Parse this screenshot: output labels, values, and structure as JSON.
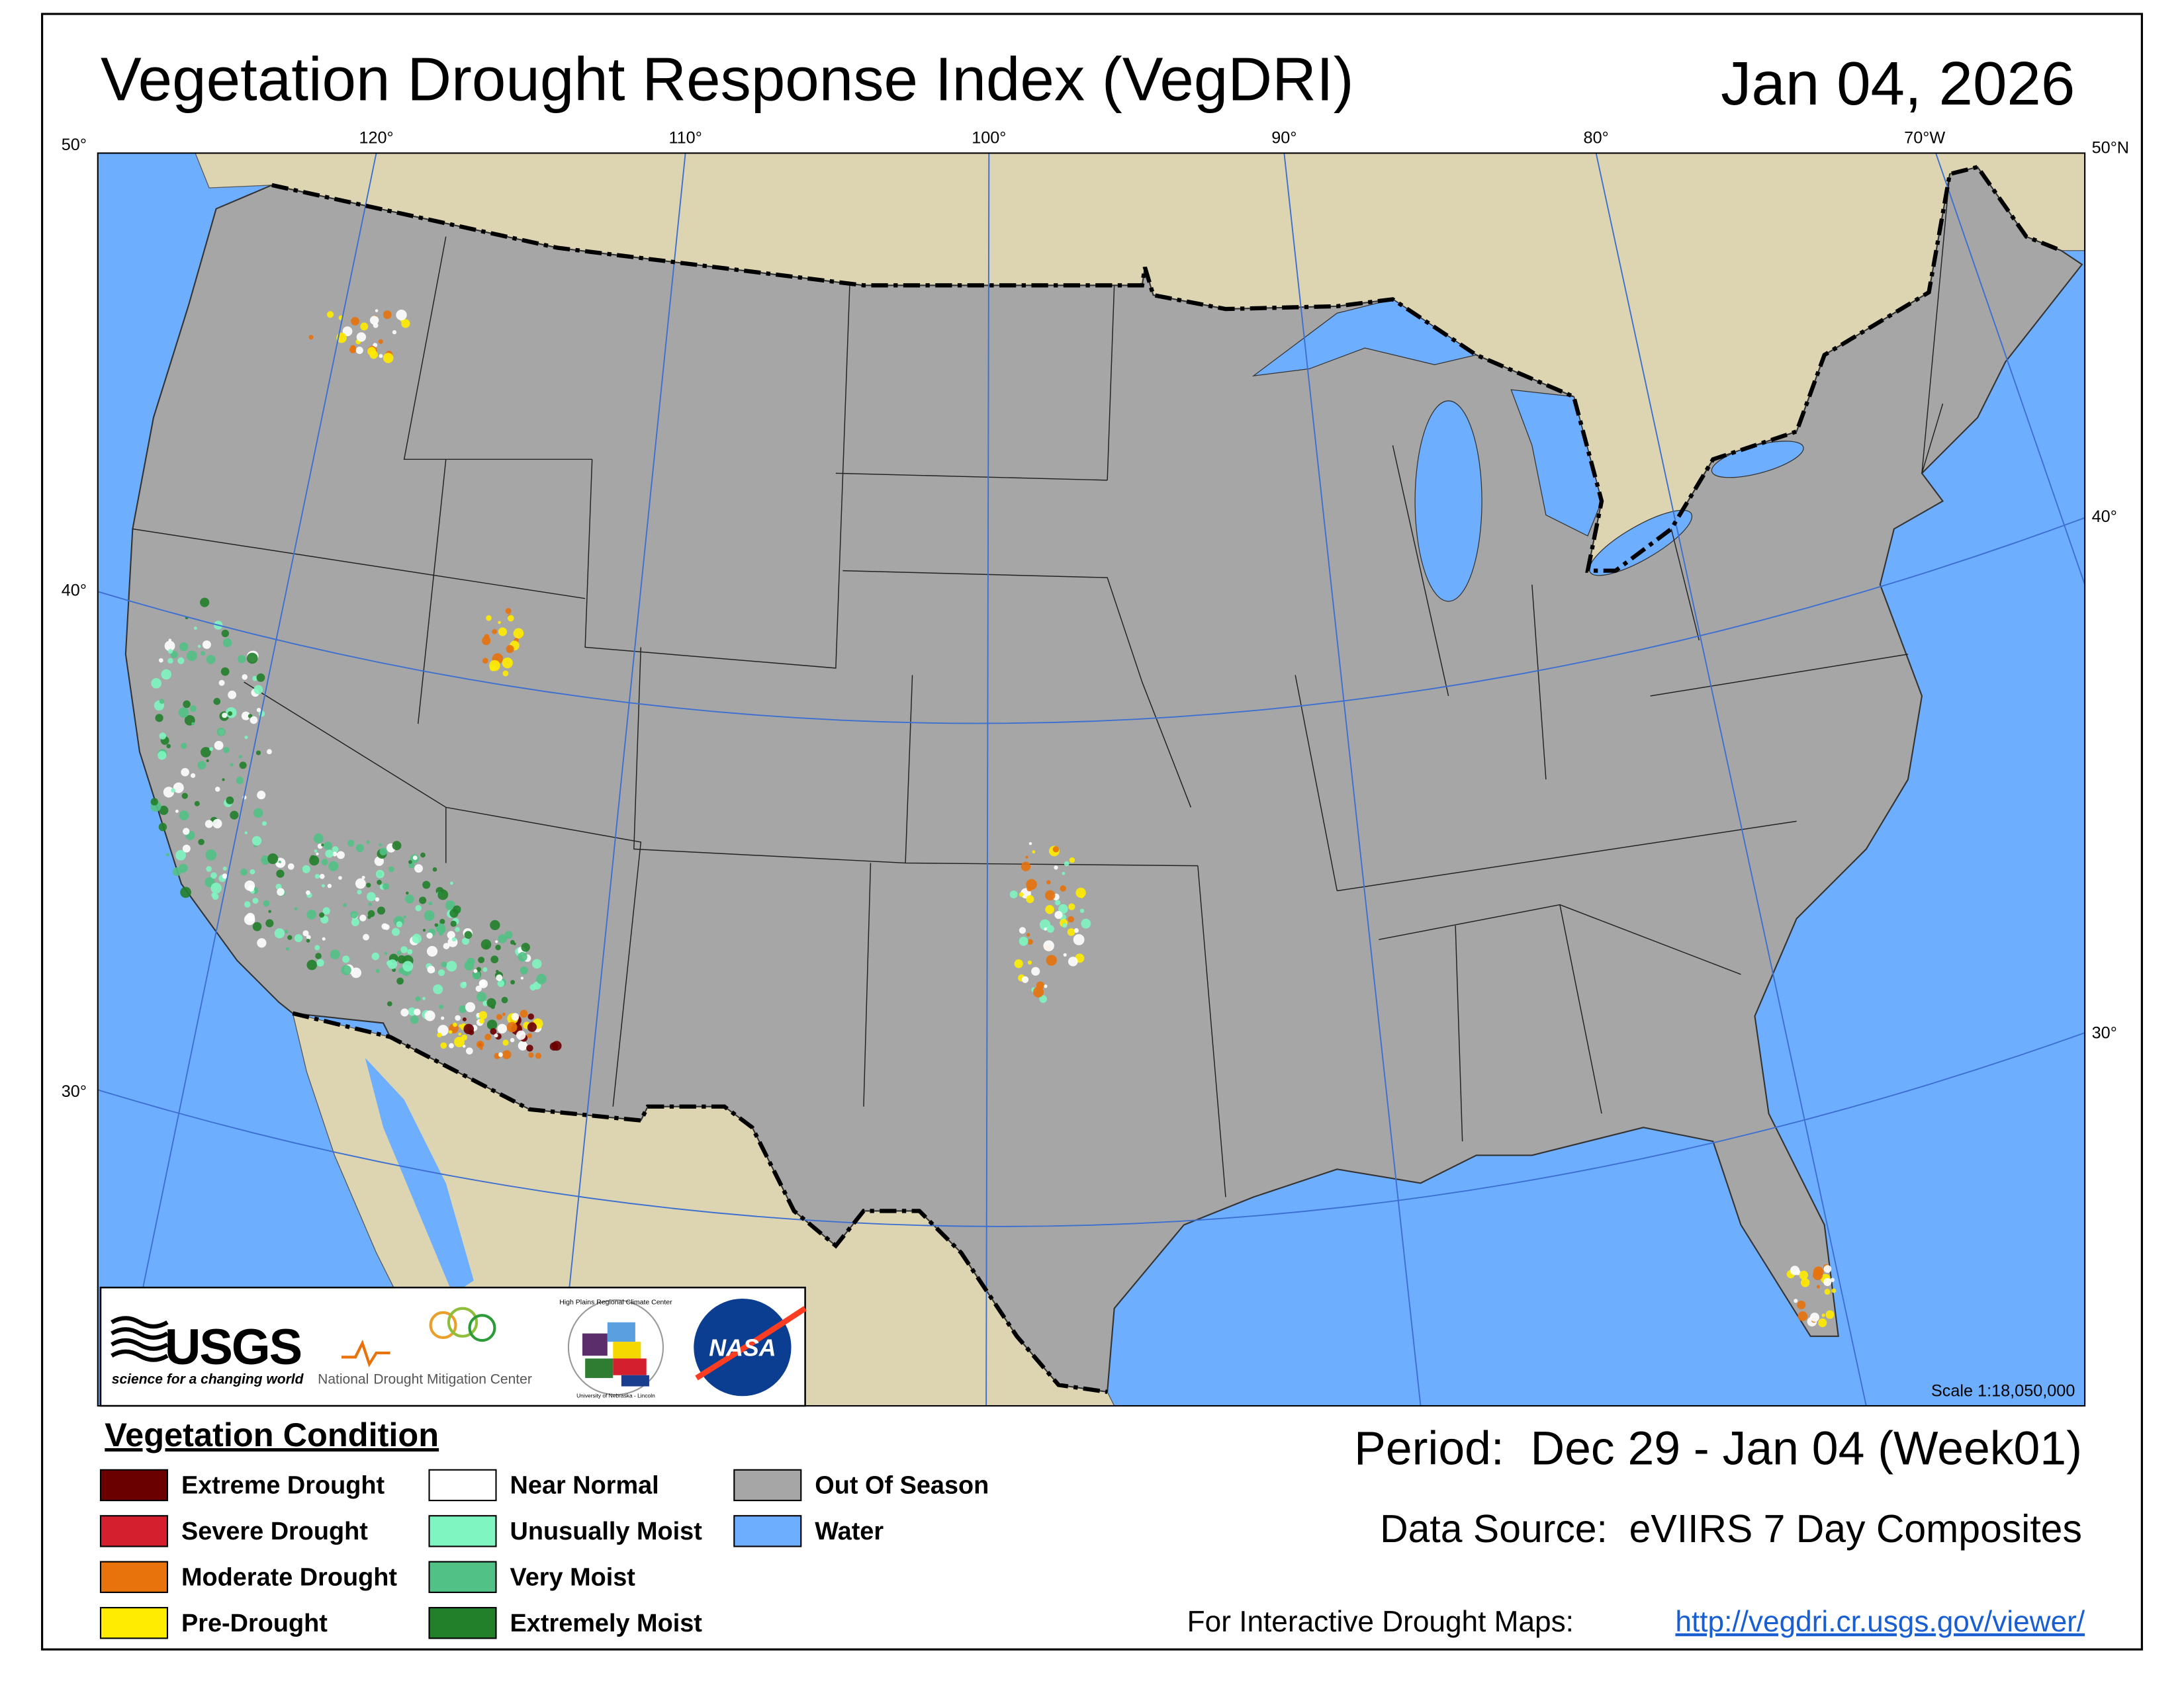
{
  "header": {
    "title": "Vegetation Drought Response Index (VegDRI)",
    "date": "Jan 04, 2026"
  },
  "map": {
    "longitude_labels": [
      "120°",
      "110°",
      "100°",
      "90°",
      "80°",
      "70°W"
    ],
    "latitude_labels_left": [
      "50°",
      "40°",
      "30°"
    ],
    "latitude_labels_right": [
      "50°N",
      "40°",
      "30°"
    ],
    "scale": "Scale 1:18,050,000"
  },
  "logos": {
    "usgs": "USGS",
    "usgs_tagline": "science for a changing world",
    "ndmc_prefix": "National",
    "ndmc": "Drought Mitigation Center",
    "hprcc": "High Plains Regional Climate Center",
    "unl": "University of Nebraska - Lincoln",
    "nasa": "NASA"
  },
  "legend": {
    "title": "Vegetation Condition",
    "items": [
      {
        "label": "Extreme Drought",
        "color": "#6b0000"
      },
      {
        "label": "Severe Drought",
        "color": "#d41f2e"
      },
      {
        "label": "Moderate Drought",
        "color": "#e8720c"
      },
      {
        "label": "Pre-Drought",
        "color": "#ffec00"
      },
      {
        "label": "Near Normal",
        "color": "#ffffff"
      },
      {
        "label": "Unusually Moist",
        "color": "#7ff5c1"
      },
      {
        "label": "Very Moist",
        "color": "#52c186"
      },
      {
        "label": "Extremely Moist",
        "color": "#22802b"
      },
      {
        "label": "Out Of Season",
        "color": "#a6a6a6"
      },
      {
        "label": "Water",
        "color": "#6eaeff"
      }
    ]
  },
  "footer": {
    "period": "Period:  Dec 29 - Jan 04 (Week01)",
    "data_source": "Data Source:  eVIIRS 7 Day Composites",
    "interactive_label": "For Interactive Drought Maps:",
    "link": "http://vegdri.cr.usgs.gov/viewer/"
  }
}
